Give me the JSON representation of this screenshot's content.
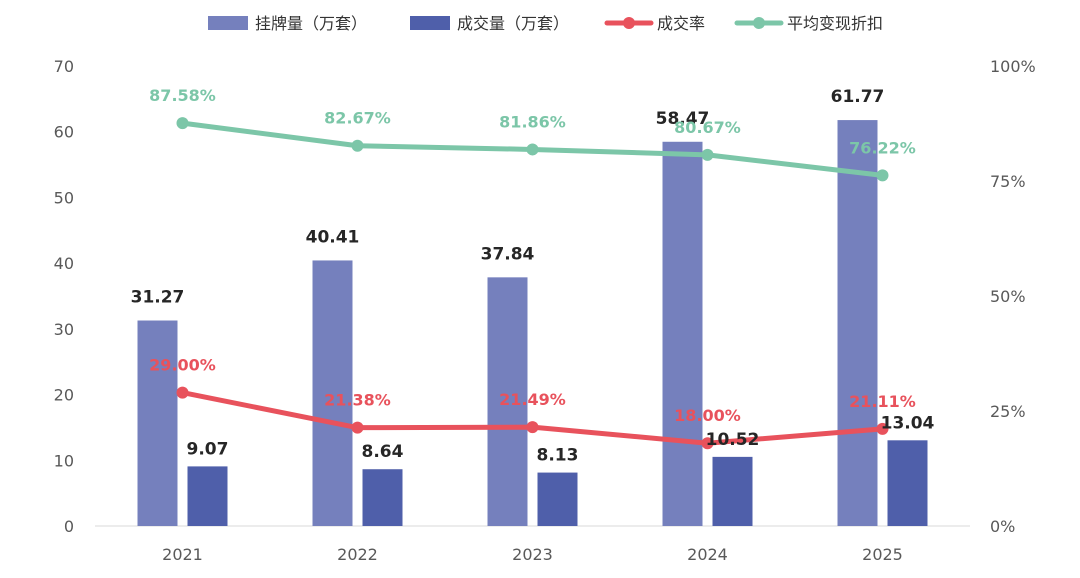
{
  "chart_data": {
    "type": "bar",
    "categories": [
      "2021",
      "2022",
      "2023",
      "2024",
      "2025"
    ],
    "y_left": {
      "ylim": [
        0,
        70
      ],
      "ticks": [
        "0",
        "10",
        "20",
        "30",
        "40",
        "50",
        "60",
        "70"
      ]
    },
    "y_right": {
      "ylim": [
        0,
        100
      ],
      "ticks": [
        "0%",
        "25%",
        "50%",
        "75%",
        "100%"
      ]
    },
    "legend_position": "top",
    "series": [
      {
        "name": "挂牌量（万套）",
        "kind": "bar",
        "axis": "left",
        "color": "#7580bd",
        "values": [
          31.27,
          40.41,
          37.84,
          58.47,
          61.77
        ],
        "labels": [
          "31.27",
          "40.41",
          "37.84",
          "58.47",
          "61.77"
        ]
      },
      {
        "name": "成交量（万套）",
        "kind": "bar",
        "axis": "left",
        "color": "#4f5faa",
        "values": [
          9.07,
          8.64,
          8.13,
          10.52,
          13.04
        ],
        "labels": [
          "9.07",
          "8.64",
          "8.13",
          "10.52",
          "13.04"
        ]
      },
      {
        "name": "成交率",
        "kind": "line",
        "axis": "right",
        "color": "#e8525c",
        "values": [
          29.0,
          21.38,
          21.49,
          18.0,
          21.11
        ],
        "labels": [
          "29.00%",
          "21.38%",
          "21.49%",
          "18.00%",
          "21.11%"
        ]
      },
      {
        "name": "平均变现折扣",
        "kind": "line",
        "axis": "right",
        "color": "#7cc6a8",
        "values": [
          87.58,
          82.67,
          81.86,
          80.67,
          76.22
        ],
        "labels": [
          "87.58%",
          "82.67%",
          "81.86%",
          "80.67%",
          "76.22%"
        ]
      }
    ]
  }
}
